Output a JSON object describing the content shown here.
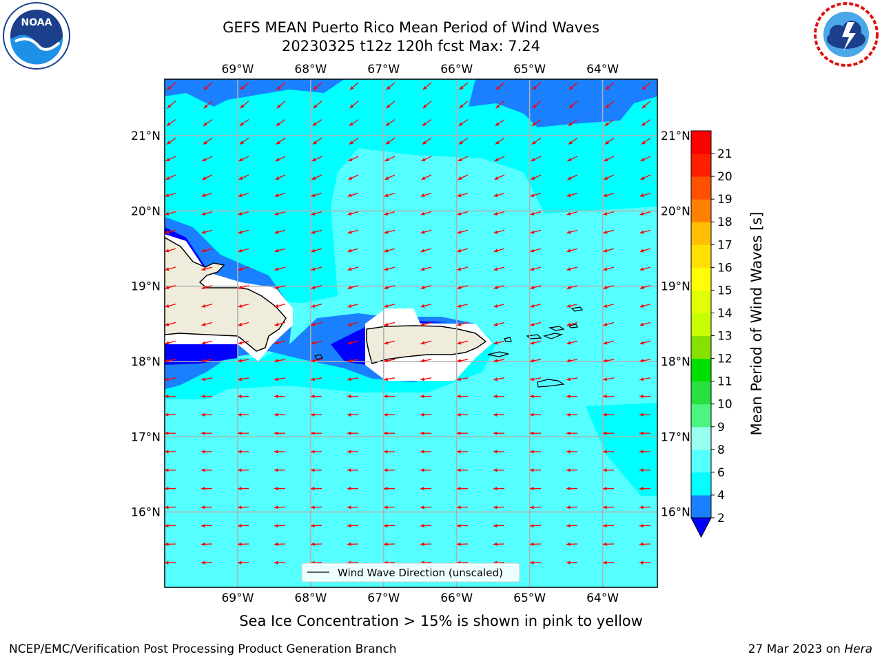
{
  "header": {
    "title_line1": "GEFS MEAN Puerto Rico Mean Period of Wind Waves",
    "title_line2": "20230325 t12z 120h fcst   Max: 7.24"
  },
  "logos": {
    "left": {
      "name": "noaa-logo",
      "text": "NOAA"
    },
    "right": {
      "name": "national-weather-service-logo"
    }
  },
  "map": {
    "lon_labels": [
      "69°W",
      "68°W",
      "67°W",
      "66°W",
      "65°W",
      "64°W"
    ],
    "lat_labels": [
      "21°N",
      "20°N",
      "19°N",
      "18°N",
      "17°N",
      "16°N"
    ],
    "legend_label": "Wind Wave Direction (unscaled)",
    "arrow_color": "#ff0000",
    "land_color": "#efecdc"
  },
  "colorbar": {
    "label": "Mean Period of Wind Waves [s]",
    "ticks": [
      "2",
      "4",
      "6",
      "8",
      "9",
      "10",
      "11",
      "12",
      "13",
      "14",
      "15",
      "16",
      "17",
      "18",
      "19",
      "20",
      "21"
    ],
    "colors": [
      "#0000ff",
      "#1a80ff",
      "#00ffff",
      "#55ffff",
      "#99ffee",
      "#4cf580",
      "#28e040",
      "#00e000",
      "#88e000",
      "#c8ff00",
      "#e0ff00",
      "#ffff00",
      "#ffe000",
      "#ffbf00",
      "#ff8000",
      "#ff5000",
      "#ff2000",
      "#ff0000"
    ]
  },
  "sea_ice_note": "Sea Ice Concentration > 15% is shown in pink to yellow",
  "footer": {
    "left": "NCEP/EMC/Verification Post Processing Product Generation Branch",
    "right_date": "27 Mar 2023 on",
    "right_host": "Hera"
  }
}
